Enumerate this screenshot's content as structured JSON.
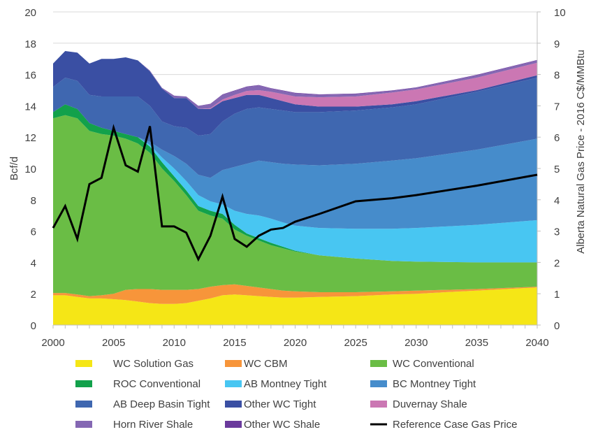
{
  "chart_data": {
    "type": "area",
    "stacked": true,
    "ylabel": "Bcf/d",
    "y2label": "Alberta Natural Gas Price - 2016 C$/MMBtu",
    "ylim": [
      0,
      20
    ],
    "y2lim": [
      0,
      10
    ],
    "xlim": [
      2000,
      2040
    ],
    "grid": true,
    "legend_position": "bottom",
    "x_ticks": [
      "2000",
      "2005",
      "2010",
      "2015",
      "2020",
      "2025",
      "2030",
      "2035",
      "2040"
    ],
    "y_ticks": [
      "0",
      "2",
      "4",
      "6",
      "8",
      "10",
      "12",
      "14",
      "16",
      "18",
      "20"
    ],
    "y2_ticks": [
      "0",
      "1",
      "2",
      "3",
      "4",
      "5",
      "6",
      "7",
      "8",
      "9",
      "10"
    ],
    "x": [
      2000,
      2001,
      2002,
      2003,
      2004,
      2005,
      2006,
      2007,
      2008,
      2009,
      2010,
      2011,
      2012,
      2013,
      2014,
      2015,
      2016,
      2017,
      2018,
      2019,
      2020,
      2022,
      2025,
      2028,
      2030,
      2035,
      2040
    ],
    "series": [
      {
        "name": "WC Solution Gas",
        "color": "#f5e616",
        "values": [
          1.9,
          1.9,
          1.8,
          1.7,
          1.7,
          1.65,
          1.6,
          1.5,
          1.4,
          1.35,
          1.35,
          1.4,
          1.55,
          1.7,
          1.9,
          1.95,
          1.9,
          1.85,
          1.8,
          1.75,
          1.75,
          1.8,
          1.85,
          1.95,
          2.0,
          2.2,
          2.4
        ]
      },
      {
        "name": "WC CBM",
        "color": "#f7953a",
        "values": [
          0.15,
          0.15,
          0.15,
          0.15,
          0.2,
          0.35,
          0.65,
          0.8,
          0.9,
          0.9,
          0.9,
          0.85,
          0.75,
          0.75,
          0.65,
          0.65,
          0.6,
          0.55,
          0.5,
          0.45,
          0.4,
          0.3,
          0.25,
          0.2,
          0.2,
          0.1,
          0.05
        ]
      },
      {
        "name": "WC Conventional",
        "color": "#6abd45",
        "values": [
          11.15,
          11.35,
          11.25,
          10.55,
          10.3,
          10.1,
          9.65,
          9.3,
          8.7,
          7.75,
          6.95,
          6.05,
          5.0,
          4.55,
          4.25,
          3.5,
          3.2,
          3.0,
          2.8,
          2.7,
          2.55,
          2.35,
          2.15,
          1.95,
          1.85,
          1.7,
          1.55
        ]
      },
      {
        "name": "ROC Conventional",
        "color": "#12a14b",
        "values": [
          0.4,
          0.7,
          0.6,
          0.5,
          0.4,
          0.3,
          0.3,
          0.4,
          0.4,
          0.4,
          0.3,
          0.3,
          0.3,
          0.3,
          0.3,
          0.3,
          0.15,
          0.15,
          0.15,
          0.1,
          0.05,
          0,
          0,
          0,
          0,
          0,
          0
        ]
      },
      {
        "name": "AB Montney Tight",
        "color": "#48c6f2",
        "values": [
          0,
          0,
          0,
          0,
          0,
          0,
          0,
          0,
          0.1,
          0.3,
          0.5,
          0.6,
          0.7,
          0.6,
          0.6,
          0.9,
          1.25,
          1.45,
          1.55,
          1.55,
          1.6,
          1.75,
          1.9,
          2.05,
          2.15,
          2.4,
          2.7
        ]
      },
      {
        "name": "BC Montney Tight",
        "color": "#468ccb",
        "values": [
          0,
          0,
          0,
          0,
          0,
          0,
          0,
          0,
          0.2,
          0.5,
          0.8,
          1.1,
          1.3,
          1.5,
          2.2,
          2.8,
          3.2,
          3.5,
          3.6,
          3.75,
          3.9,
          4.0,
          4.15,
          4.35,
          4.45,
          4.8,
          5.2
        ]
      },
      {
        "name": "AB Deep Basin Tight",
        "color": "#3f67b0",
        "values": [
          1.6,
          1.7,
          1.8,
          1.8,
          2.0,
          2.2,
          2.4,
          2.6,
          2.3,
          1.8,
          1.9,
          2.3,
          2.5,
          2.8,
          3.1,
          3.4,
          3.5,
          3.4,
          3.4,
          3.4,
          3.35,
          3.4,
          3.4,
          3.4,
          3.45,
          3.7,
          3.9
        ]
      },
      {
        "name": "Other WC Tight",
        "color": "#3a4fa3",
        "values": [
          1.5,
          1.7,
          1.8,
          2.0,
          2.4,
          2.4,
          2.5,
          2.3,
          2.2,
          2.1,
          1.8,
          1.9,
          1.7,
          1.6,
          1.3,
          1.0,
          0.9,
          0.8,
          0.7,
          0.6,
          0.5,
          0.35,
          0.25,
          0.2,
          0.2,
          0.1,
          0.15
        ]
      },
      {
        "name": "Duvernay Shale",
        "color": "#cb77b3",
        "values": [
          0,
          0,
          0,
          0,
          0,
          0,
          0,
          0,
          0,
          0,
          0,
          0,
          0,
          0.05,
          0.1,
          0.2,
          0.25,
          0.3,
          0.4,
          0.45,
          0.5,
          0.6,
          0.65,
          0.75,
          0.75,
          0.8,
          0.8
        ]
      },
      {
        "name": "Horn River Shale",
        "color": "#8467b3",
        "values": [
          0,
          0,
          0,
          0,
          0,
          0,
          0,
          0,
          0.05,
          0.05,
          0.15,
          0.1,
          0.2,
          0.25,
          0.3,
          0.25,
          0.25,
          0.3,
          0.2,
          0.2,
          0.2,
          0.15,
          0.15,
          0.1,
          0.1,
          0.15,
          0.15
        ]
      },
      {
        "name": "Other WC Shale",
        "color": "#6a3a9c",
        "values": [
          0,
          0,
          0,
          0,
          0,
          0,
          0,
          0,
          0,
          0,
          0,
          0,
          0,
          0.03,
          0.03,
          0.03,
          0.03,
          0.03,
          0.03,
          0.03,
          0.03,
          0.03,
          0.03,
          0.03,
          0.03,
          0.03,
          0.03
        ]
      }
    ],
    "line": {
      "name": "Reference Case Gas Price",
      "color": "#000000",
      "axis": "right",
      "values": [
        3.1,
        3.8,
        2.75,
        4.5,
        4.7,
        6.3,
        5.1,
        4.9,
        6.35,
        3.15,
        3.15,
        2.95,
        2.1,
        2.85,
        4.1,
        2.75,
        2.5,
        2.85,
        3.05,
        3.1,
        3.3,
        3.55,
        3.95,
        4.05,
        4.15,
        4.45,
        4.8
      ]
    }
  }
}
